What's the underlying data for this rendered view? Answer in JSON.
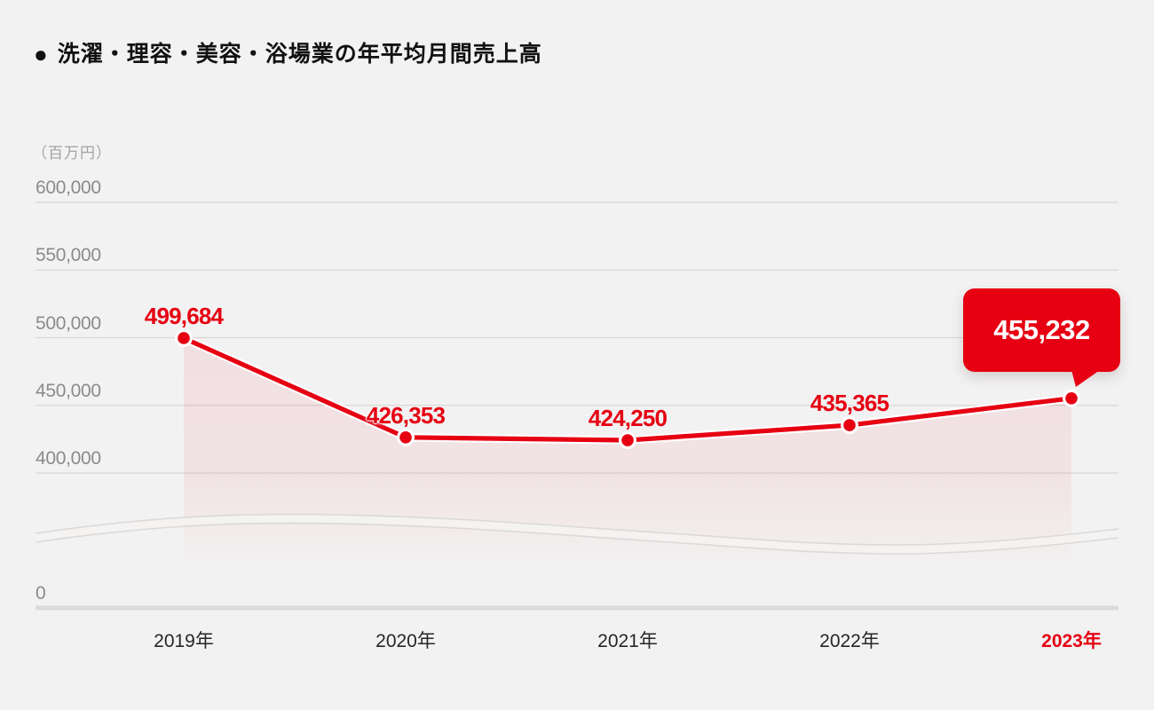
{
  "title": {
    "bullet": "●",
    "text": "洗濯・理容・美容・浴場業の年平均月間売上高"
  },
  "chart_data": {
    "type": "line",
    "title": "洗濯・理容・美容・浴場業の年平均月間売上高",
    "ylabel": "（百万円）",
    "categories": [
      "2019年",
      "2020年",
      "2021年",
      "2022年",
      "2023年"
    ],
    "series": [
      {
        "name": "年平均月間売上高",
        "values": [
          499684,
          426353,
          424250,
          435365,
          455232
        ],
        "labels": [
          "499,684",
          "426,353",
          "424,250",
          "435,365",
          "455,232"
        ]
      }
    ],
    "yticks": {
      "values": [
        600000,
        550000,
        500000,
        450000,
        400000,
        0
      ],
      "labels": [
        "600,000",
        "550,000",
        "500,000",
        "450,000",
        "400,000",
        "0"
      ]
    },
    "ylim": [
      0,
      600000
    ],
    "axis_break": true,
    "grid": true,
    "legend": "none",
    "highlight": {
      "index": 4,
      "label": "455,232",
      "category": "2023年"
    },
    "colors": {
      "accent": "#e60012",
      "background": "#f2f2f2",
      "grid": "#d8d6d5",
      "axis_line": "#dcdbdb",
      "ytick_text": "#8d8a8a",
      "xtick_text": "#262626",
      "xtick_highlight": "#e60012",
      "area_fill": "rgba(230,0,18,0.07)",
      "callout_bg": "#e60012",
      "callout_text": "#ffffff"
    }
  }
}
